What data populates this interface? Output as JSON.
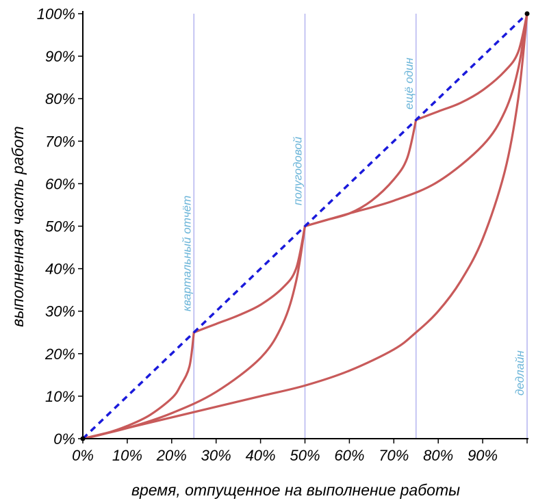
{
  "chart_data": {
    "type": "line",
    "xlabel": "время, отпущенное на выполнение работы",
    "ylabel": "выполненная часть работ",
    "xlim": [
      0,
      100
    ],
    "ylim": [
      0,
      100
    ],
    "x_ticks": [
      "0%",
      "10%",
      "20%",
      "30%",
      "40%",
      "50%",
      "60%",
      "70%",
      "80%",
      "90%"
    ],
    "y_ticks": [
      "0%",
      "10%",
      "20%",
      "30%",
      "40%",
      "50%",
      "60%",
      "70%",
      "80%",
      "90%",
      "100%"
    ],
    "markers": [
      {
        "x": 25,
        "label": "квартальный отчёт"
      },
      {
        "x": 50,
        "label": "полугодовой"
      },
      {
        "x": 75,
        "label": "ещё один"
      },
      {
        "x": 100,
        "label": "дедлайн"
      }
    ],
    "colors": {
      "curves": "#c85a5a",
      "diagonal": "#1a1adb",
      "markers": "#b8b8f0",
      "marker_labels": "#6ab4d8"
    },
    "series": [
      {
        "style": "dotted",
        "x": [
          0,
          100
        ],
        "y": [
          0,
          100
        ]
      },
      {
        "x": [
          0,
          5,
          10,
          15,
          20,
          22,
          24,
          25
        ],
        "y": [
          0,
          1.2,
          3,
          5.5,
          9.5,
          12.5,
          17,
          25
        ]
      },
      {
        "x": [
          25,
          30,
          35,
          40,
          45,
          48,
          50
        ],
        "y": [
          25,
          27,
          29,
          31.5,
          35.5,
          40,
          50
        ]
      },
      {
        "x": [
          50,
          55,
          60,
          65,
          70,
          73,
          75
        ],
        "y": [
          50,
          51.5,
          53,
          56,
          61,
          66,
          75
        ]
      },
      {
        "x": [
          75,
          80,
          85,
          90,
          95,
          98,
          100
        ],
        "y": [
          75,
          77,
          79,
          82,
          86.5,
          91,
          100
        ]
      },
      {
        "x": [
          0,
          10,
          20,
          30,
          40,
          45,
          48,
          50
        ],
        "y": [
          0,
          2.5,
          6,
          11,
          19,
          27,
          37,
          50
        ]
      },
      {
        "x": [
          50,
          60,
          70,
          80,
          90,
          95,
          98,
          100
        ],
        "y": [
          50,
          53,
          56,
          60.5,
          69,
          77,
          87,
          100
        ]
      },
      {
        "x": [
          0,
          10,
          20,
          30,
          40,
          50,
          60,
          70,
          75,
          80,
          85,
          90,
          95,
          98,
          100
        ],
        "y": [
          0,
          2.5,
          5,
          7.5,
          10,
          12.5,
          16,
          21,
          25,
          30,
          37,
          47,
          63,
          80,
          100
        ]
      }
    ]
  }
}
